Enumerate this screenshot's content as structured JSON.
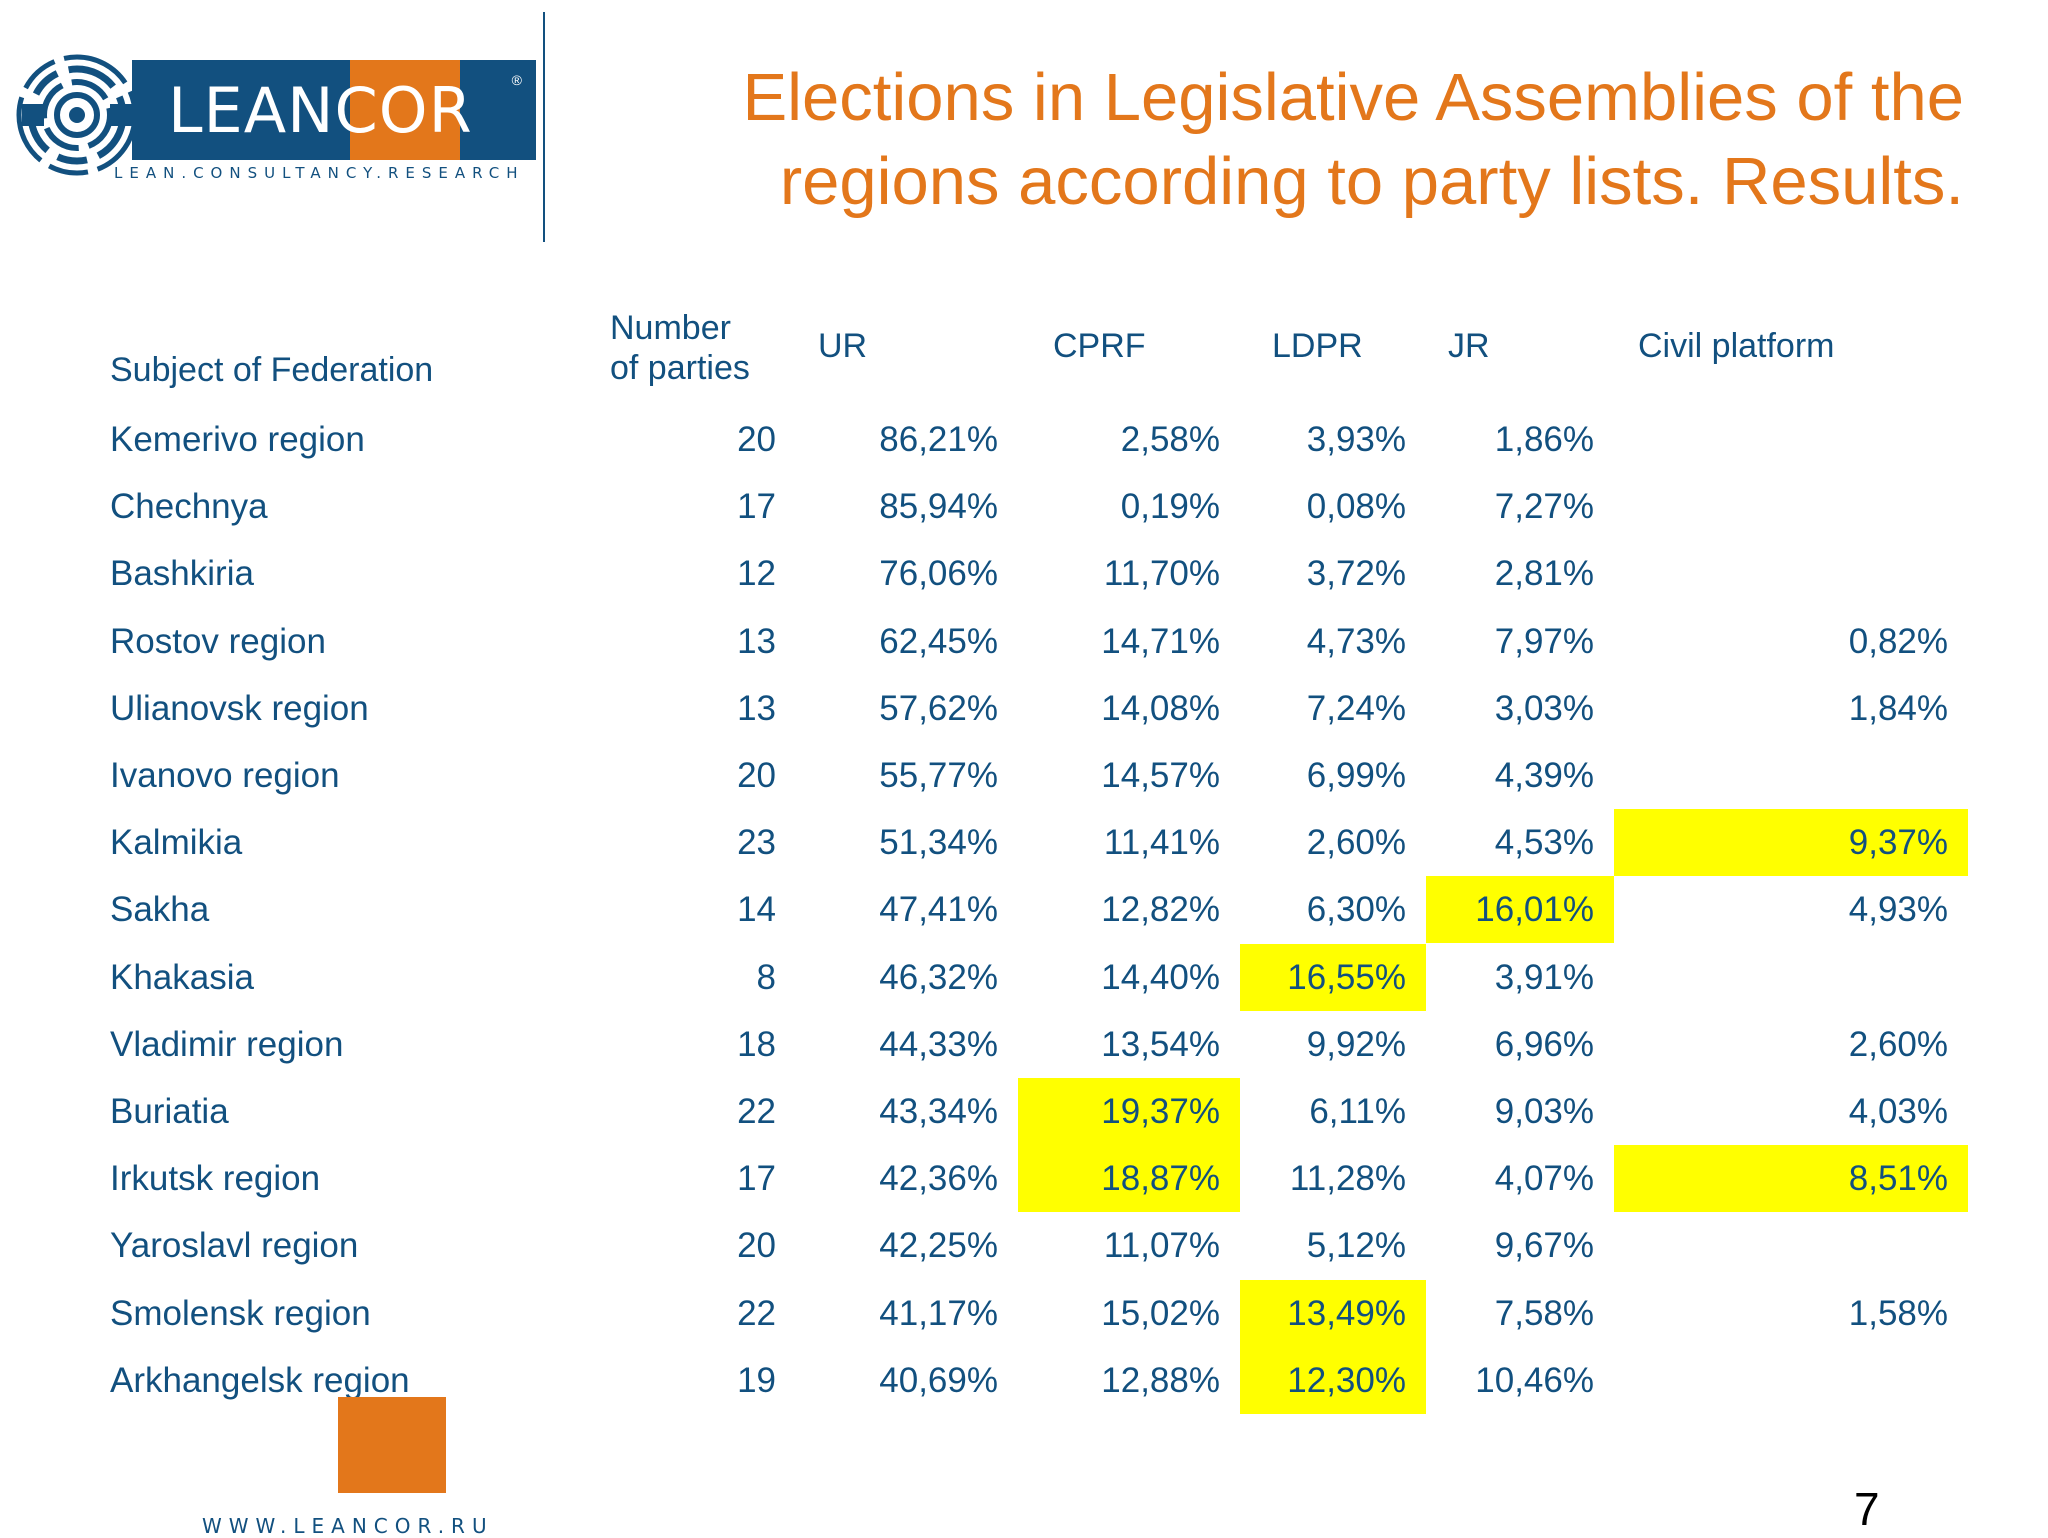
{
  "logo": {
    "wordmark_lean": "LEAN",
    "wordmark_cor": "COR",
    "registered": "®",
    "tagline": "LEAN.CONSULTANCY.RESEARCH",
    "brand_blue": "#12507f",
    "brand_orange": "#e3771b"
  },
  "title": {
    "line1": "Elections in Legislative Assemblies of the",
    "line2": "regions according to party lists. Results."
  },
  "table": {
    "headers": {
      "subject": "Subject of Federation",
      "parties_line1": "Number",
      "parties_line2": "of parties",
      "ur": "UR",
      "cprf": "CPRF",
      "ldpr": "LDPR",
      "jr": "JR",
      "civil": "Civil platform"
    },
    "highlight_color": "#ffff00",
    "rows": [
      {
        "name": "Kemerivo region",
        "parties": "20",
        "ur": "86,21%",
        "cprf": "2,58%",
        "ldpr": "3,93%",
        "jr": "1,86%",
        "civil": "",
        "highlight": []
      },
      {
        "name": "Chechnya",
        "parties": "17",
        "ur": "85,94%",
        "cprf": "0,19%",
        "ldpr": "0,08%",
        "jr": "7,27%",
        "civil": "",
        "highlight": []
      },
      {
        "name": "Bashkiria",
        "parties": "12",
        "ur": "76,06%",
        "cprf": "11,70%",
        "ldpr": "3,72%",
        "jr": "2,81%",
        "civil": "",
        "highlight": []
      },
      {
        "name": "Rostov region",
        "parties": "13",
        "ur": "62,45%",
        "cprf": "14,71%",
        "ldpr": "4,73%",
        "jr": "7,97%",
        "civil": "0,82%",
        "highlight": []
      },
      {
        "name": "Ulianovsk region",
        "parties": "13",
        "ur": "57,62%",
        "cprf": "14,08%",
        "ldpr": "7,24%",
        "jr": "3,03%",
        "civil": "1,84%",
        "highlight": []
      },
      {
        "name": "Ivanovo region",
        "parties": "20",
        "ur": "55,77%",
        "cprf": "14,57%",
        "ldpr": "6,99%",
        "jr": "4,39%",
        "civil": "",
        "highlight": []
      },
      {
        "name": "Kalmikia",
        "parties": "23",
        "ur": "51,34%",
        "cprf": "11,41%",
        "ldpr": "2,60%",
        "jr": "4,53%",
        "civil": "9,37%",
        "highlight": [
          "civil"
        ]
      },
      {
        "name": "Sakha",
        "parties": "14",
        "ur": "47,41%",
        "cprf": "12,82%",
        "ldpr": "6,30%",
        "jr": "16,01%",
        "civil": "4,93%",
        "highlight": [
          "jr"
        ]
      },
      {
        "name": "Khakasia",
        "parties": "8",
        "ur": "46,32%",
        "cprf": "14,40%",
        "ldpr": "16,55%",
        "jr": "3,91%",
        "civil": "",
        "highlight": [
          "ldpr"
        ]
      },
      {
        "name": "Vladimir region",
        "parties": "18",
        "ur": "44,33%",
        "cprf": "13,54%",
        "ldpr": "9,92%",
        "jr": "6,96%",
        "civil": "2,60%",
        "highlight": []
      },
      {
        "name": "Buriatia",
        "parties": "22",
        "ur": "43,34%",
        "cprf": "19,37%",
        "ldpr": "6,11%",
        "jr": "9,03%",
        "civil": "4,03%",
        "highlight": [
          "cprf"
        ]
      },
      {
        "name": "Irkutsk region",
        "parties": "17",
        "ur": "42,36%",
        "cprf": "18,87%",
        "ldpr": "11,28%",
        "jr": "4,07%",
        "civil": "8,51%",
        "highlight": [
          "cprf",
          "civil"
        ]
      },
      {
        "name": "Yaroslavl region",
        "parties": "20",
        "ur": "42,25%",
        "cprf": "11,07%",
        "ldpr": "5,12%",
        "jr": "9,67%",
        "civil": "",
        "highlight": []
      },
      {
        "name": "Smolensk region",
        "parties": "22",
        "ur": "41,17%",
        "cprf": "15,02%",
        "ldpr": "13,49%",
        "jr": "7,58%",
        "civil": "1,58%",
        "highlight": [
          "ldpr"
        ]
      },
      {
        "name": "Arkhangelsk region",
        "parties": "19",
        "ur": "40,69%",
        "cprf": "12,88%",
        "ldpr": "12,30%",
        "jr": "10,46%",
        "civil": "",
        "highlight": [
          "ldpr"
        ]
      }
    ]
  },
  "footer": {
    "url": "WWW.LEANCOR.RU",
    "page_number": "7"
  }
}
